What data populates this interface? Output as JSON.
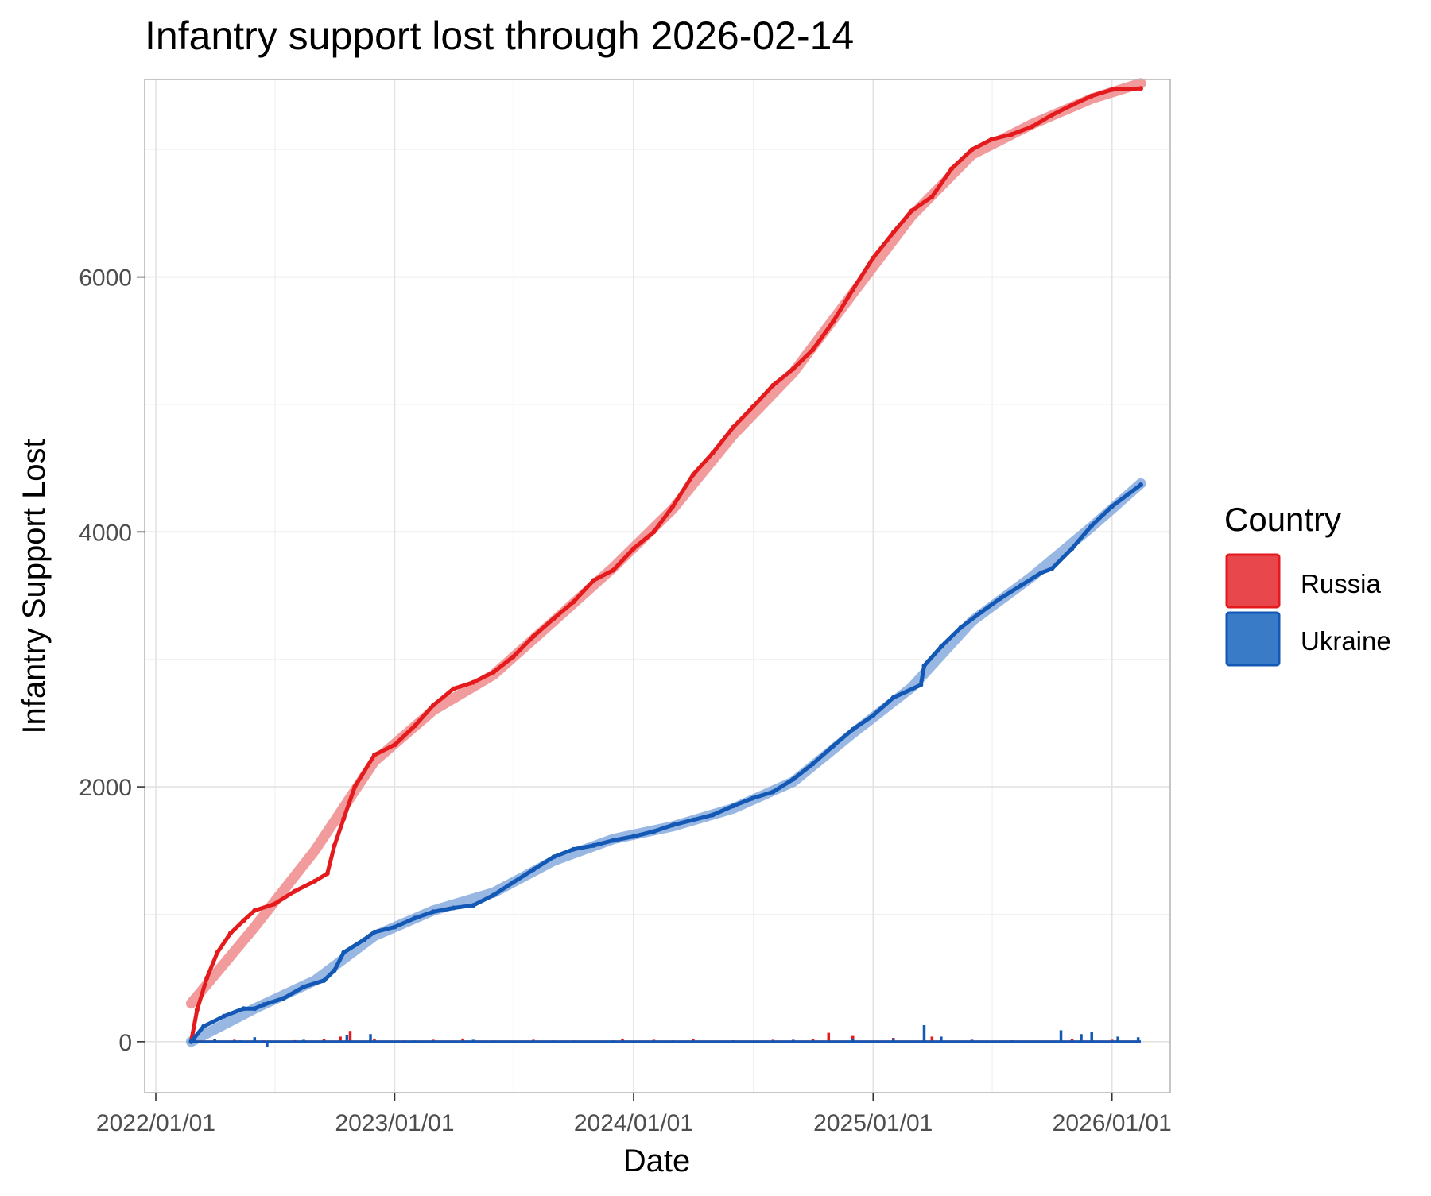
{
  "chart_data": {
    "type": "line",
    "title": "Infantry support lost through 2026-02-14",
    "xlabel": "Date",
    "ylabel": "Infantry Support Lost",
    "x_ticks": [
      "2022/01/01",
      "2023/01/01",
      "2024/01/01",
      "2025/01/01",
      "2026/01/01"
    ],
    "y_ticks": [
      0,
      2000,
      4000,
      6000
    ],
    "ylim": [
      -400,
      7550
    ],
    "xlim": [
      "2021-12-15",
      "2026-03-31"
    ],
    "grid": true,
    "legend": {
      "title": "Country",
      "position": "right"
    },
    "series": [
      {
        "name": "Russia",
        "color": "#e41a1c",
        "fill": "#e8474c",
        "trend_color": "#f08a8c",
        "cumulative": [
          [
            "2022-02-24",
            0
          ],
          [
            "2022-03-05",
            250
          ],
          [
            "2022-03-20",
            500
          ],
          [
            "2022-04-05",
            700
          ],
          [
            "2022-04-25",
            850
          ],
          [
            "2022-05-15",
            950
          ],
          [
            "2022-06-01",
            1030
          ],
          [
            "2022-07-01",
            1080
          ],
          [
            "2022-08-01",
            1180
          ],
          [
            "2022-09-01",
            1260
          ],
          [
            "2022-09-20",
            1320
          ],
          [
            "2022-10-01",
            1540
          ],
          [
            "2022-10-15",
            1750
          ],
          [
            "2022-11-01",
            2000
          ],
          [
            "2022-12-01",
            2250
          ],
          [
            "2023-01-01",
            2330
          ],
          [
            "2023-02-01",
            2480
          ],
          [
            "2023-03-01",
            2640
          ],
          [
            "2023-04-01",
            2770
          ],
          [
            "2023-05-01",
            2820
          ],
          [
            "2023-06-01",
            2900
          ],
          [
            "2023-07-01",
            3020
          ],
          [
            "2023-08-01",
            3180
          ],
          [
            "2023-09-01",
            3320
          ],
          [
            "2023-10-01",
            3450
          ],
          [
            "2023-11-01",
            3620
          ],
          [
            "2023-12-01",
            3700
          ],
          [
            "2024-01-01",
            3870
          ],
          [
            "2024-02-01",
            4000
          ],
          [
            "2024-03-01",
            4200
          ],
          [
            "2024-04-01",
            4450
          ],
          [
            "2024-05-01",
            4620
          ],
          [
            "2024-06-01",
            4820
          ],
          [
            "2024-07-01",
            4980
          ],
          [
            "2024-08-01",
            5150
          ],
          [
            "2024-09-01",
            5280
          ],
          [
            "2024-10-01",
            5430
          ],
          [
            "2024-11-01",
            5650
          ],
          [
            "2024-12-01",
            5900
          ],
          [
            "2025-01-01",
            6150
          ],
          [
            "2025-02-01",
            6350
          ],
          [
            "2025-03-01",
            6520
          ],
          [
            "2025-04-01",
            6630
          ],
          [
            "2025-05-01",
            6850
          ],
          [
            "2025-06-01",
            7000
          ],
          [
            "2025-07-01",
            7080
          ],
          [
            "2025-08-01",
            7120
          ],
          [
            "2025-09-01",
            7180
          ],
          [
            "2025-10-01",
            7270
          ],
          [
            "2025-11-01",
            7350
          ],
          [
            "2025-12-01",
            7420
          ],
          [
            "2026-01-01",
            7470
          ],
          [
            "2026-02-14",
            7480
          ]
        ],
        "trend": [
          [
            "2022-02-24",
            300
          ],
          [
            "2022-06-01",
            900
          ],
          [
            "2022-09-01",
            1500
          ],
          [
            "2022-12-01",
            2200
          ],
          [
            "2023-03-01",
            2600
          ],
          [
            "2023-06-01",
            2880
          ],
          [
            "2023-09-01",
            3300
          ],
          [
            "2023-12-01",
            3720
          ],
          [
            "2024-03-01",
            4180
          ],
          [
            "2024-06-01",
            4760
          ],
          [
            "2024-09-01",
            5250
          ],
          [
            "2024-12-01",
            5870
          ],
          [
            "2025-03-01",
            6480
          ],
          [
            "2025-06-01",
            6960
          ],
          [
            "2025-09-01",
            7200
          ],
          [
            "2025-12-01",
            7400
          ],
          [
            "2026-02-14",
            7520
          ]
        ],
        "daily": [
          [
            "2022-03-01",
            30
          ],
          [
            "2022-04-01",
            20
          ],
          [
            "2022-05-01",
            15
          ],
          [
            "2022-06-15",
            10
          ],
          [
            "2022-08-01",
            12
          ],
          [
            "2022-09-15",
            20
          ],
          [
            "2022-10-10",
            40
          ],
          [
            "2022-10-25",
            85
          ],
          [
            "2022-12-01",
            20
          ],
          [
            "2023-01-15",
            10
          ],
          [
            "2023-03-01",
            15
          ],
          [
            "2023-04-15",
            25
          ],
          [
            "2023-06-01",
            10
          ],
          [
            "2023-08-01",
            15
          ],
          [
            "2023-10-01",
            10
          ],
          [
            "2023-12-15",
            20
          ],
          [
            "2024-02-01",
            15
          ],
          [
            "2024-04-01",
            20
          ],
          [
            "2024-06-01",
            10
          ],
          [
            "2024-08-01",
            15
          ],
          [
            "2024-10-01",
            20
          ],
          [
            "2024-10-25",
            70
          ],
          [
            "2024-12-01",
            45
          ],
          [
            "2025-02-01",
            30
          ],
          [
            "2025-04-01",
            40
          ],
          [
            "2025-06-01",
            15
          ],
          [
            "2025-08-01",
            10
          ],
          [
            "2025-11-01",
            20
          ],
          [
            "2026-01-01",
            15
          ]
        ]
      },
      {
        "name": "Ukraine",
        "color": "#1258b4",
        "fill": "#3a7bc8",
        "trend_color": "#86acde",
        "cumulative": [
          [
            "2022-02-24",
            0
          ],
          [
            "2022-03-15",
            120
          ],
          [
            "2022-04-15",
            200
          ],
          [
            "2022-05-15",
            260
          ],
          [
            "2022-06-01",
            260
          ],
          [
            "2022-06-15",
            290
          ],
          [
            "2022-07-15",
            340
          ],
          [
            "2022-08-15",
            430
          ],
          [
            "2022-09-15",
            480
          ],
          [
            "2022-10-01",
            560
          ],
          [
            "2022-10-15",
            700
          ],
          [
            "2022-11-15",
            800
          ],
          [
            "2022-12-01",
            860
          ],
          [
            "2023-01-01",
            900
          ],
          [
            "2023-02-01",
            970
          ],
          [
            "2023-03-01",
            1020
          ],
          [
            "2023-04-01",
            1050
          ],
          [
            "2023-05-01",
            1070
          ],
          [
            "2023-06-01",
            1150
          ],
          [
            "2023-07-01",
            1250
          ],
          [
            "2023-08-01",
            1350
          ],
          [
            "2023-09-01",
            1450
          ],
          [
            "2023-10-01",
            1510
          ],
          [
            "2023-11-01",
            1540
          ],
          [
            "2023-12-01",
            1580
          ],
          [
            "2024-01-01",
            1610
          ],
          [
            "2024-02-01",
            1650
          ],
          [
            "2024-03-01",
            1700
          ],
          [
            "2024-04-01",
            1740
          ],
          [
            "2024-05-01",
            1780
          ],
          [
            "2024-06-01",
            1850
          ],
          [
            "2024-07-01",
            1910
          ],
          [
            "2024-08-01",
            1960
          ],
          [
            "2024-09-01",
            2060
          ],
          [
            "2024-10-01",
            2180
          ],
          [
            "2024-11-01",
            2320
          ],
          [
            "2024-12-01",
            2450
          ],
          [
            "2025-01-01",
            2560
          ],
          [
            "2025-02-01",
            2700
          ],
          [
            "2025-03-15",
            2800
          ],
          [
            "2025-03-20",
            2950
          ],
          [
            "2025-04-15",
            3100
          ],
          [
            "2025-05-15",
            3250
          ],
          [
            "2025-06-15",
            3370
          ],
          [
            "2025-07-15",
            3480
          ],
          [
            "2025-08-15",
            3580
          ],
          [
            "2025-09-15",
            3680
          ],
          [
            "2025-10-01",
            3710
          ],
          [
            "2025-11-01",
            3870
          ],
          [
            "2025-12-01",
            4050
          ],
          [
            "2026-01-01",
            4200
          ],
          [
            "2026-02-14",
            4370
          ]
        ],
        "trend": [
          [
            "2022-02-24",
            0
          ],
          [
            "2022-06-01",
            260
          ],
          [
            "2022-09-01",
            480
          ],
          [
            "2022-12-01",
            830
          ],
          [
            "2023-03-01",
            1030
          ],
          [
            "2023-06-01",
            1170
          ],
          [
            "2023-09-01",
            1420
          ],
          [
            "2023-12-01",
            1590
          ],
          [
            "2024-03-01",
            1690
          ],
          [
            "2024-06-01",
            1830
          ],
          [
            "2024-09-01",
            2040
          ],
          [
            "2024-12-01",
            2420
          ],
          [
            "2025-03-01",
            2780
          ],
          [
            "2025-06-01",
            3300
          ],
          [
            "2025-09-01",
            3650
          ],
          [
            "2025-12-01",
            4040
          ],
          [
            "2026-02-14",
            4380
          ]
        ],
        "daily": [
          [
            "2022-03-01",
            40
          ],
          [
            "2022-04-01",
            20
          ],
          [
            "2022-05-10",
            10
          ],
          [
            "2022-06-01",
            35
          ],
          [
            "2022-06-20",
            -40
          ],
          [
            "2022-08-15",
            15
          ],
          [
            "2022-10-20",
            50
          ],
          [
            "2022-11-25",
            60
          ],
          [
            "2023-02-01",
            10
          ],
          [
            "2023-05-01",
            15
          ],
          [
            "2023-09-01",
            10
          ],
          [
            "2023-12-01",
            10
          ],
          [
            "2024-03-01",
            10
          ],
          [
            "2024-06-01",
            10
          ],
          [
            "2024-09-01",
            15
          ],
          [
            "2024-12-01",
            20
          ],
          [
            "2025-02-01",
            25
          ],
          [
            "2025-03-20",
            130
          ],
          [
            "2025-04-15",
            40
          ],
          [
            "2025-06-01",
            15
          ],
          [
            "2025-08-01",
            10
          ],
          [
            "2025-10-15",
            90
          ],
          [
            "2025-11-15",
            60
          ],
          [
            "2025-12-01",
            80
          ],
          [
            "2026-01-10",
            40
          ],
          [
            "2026-02-10",
            35
          ]
        ]
      }
    ]
  }
}
